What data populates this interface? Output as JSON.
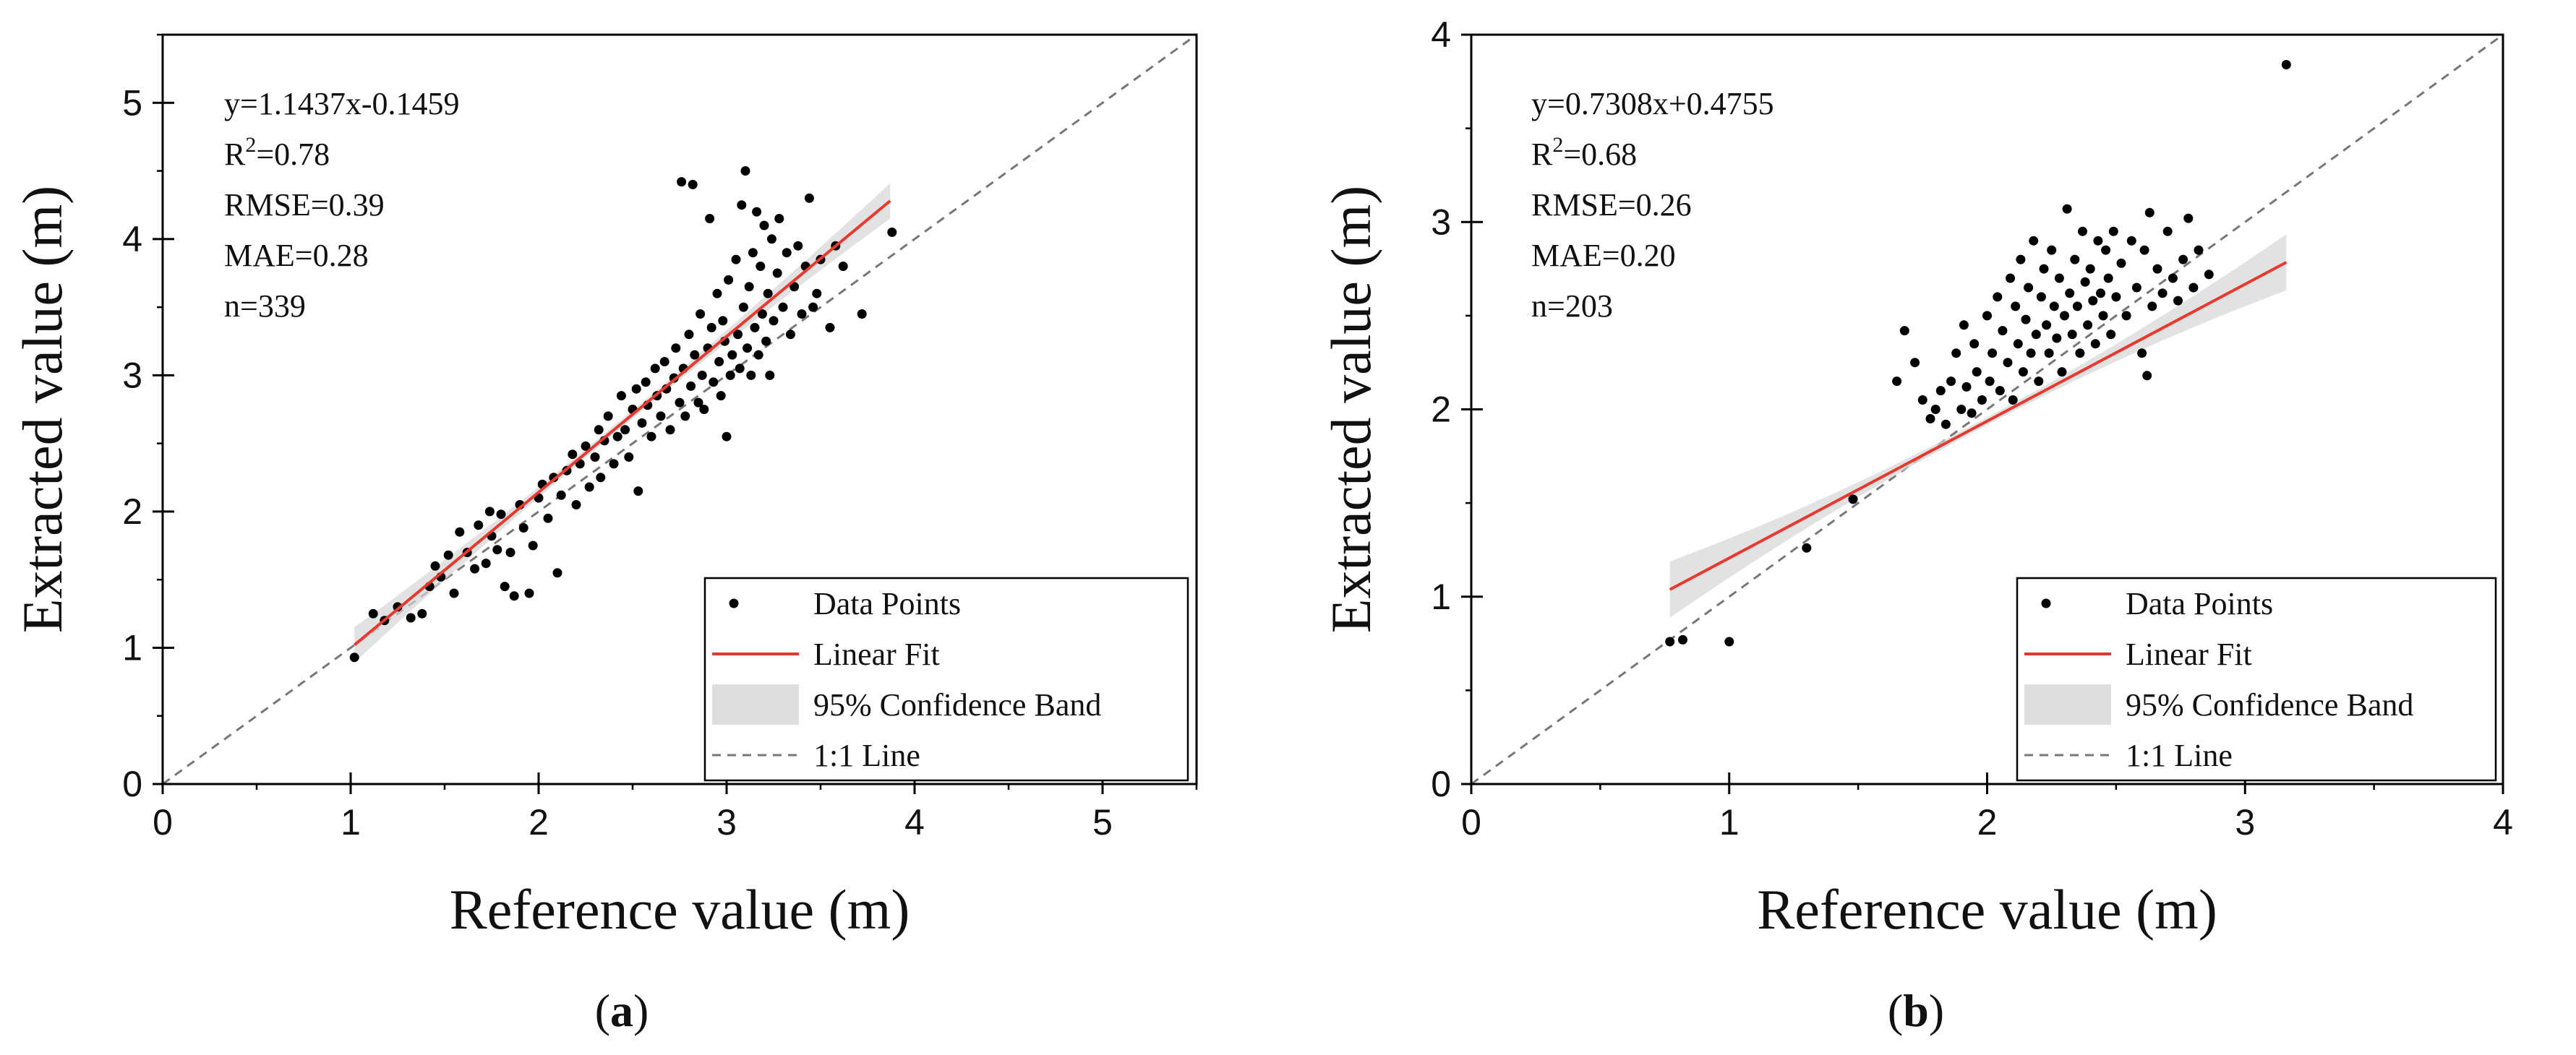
{
  "chart_data": [
    {
      "type": "scatter",
      "panel_label": "a",
      "xlabel": "Reference value (m)",
      "ylabel": "Extracted value (m)",
      "xlim": [
        0,
        5.5
      ],
      "ylim": [
        0,
        5.5
      ],
      "xticks": [
        0,
        1,
        2,
        3,
        4,
        5
      ],
      "yticks": [
        0,
        1,
        2,
        3,
        4,
        5
      ],
      "stats": [
        {
          "prefix": "y=1.1437x-0.1459",
          "sup": "",
          "suffix": ""
        },
        {
          "prefix": "R",
          "sup": "2",
          "suffix": "=0.78"
        },
        {
          "prefix": "RMSE=0.39",
          "sup": "",
          "suffix": ""
        },
        {
          "prefix": "MAE=0.28",
          "sup": "",
          "suffix": ""
        },
        {
          "prefix": "n=339",
          "sup": "",
          "suffix": ""
        }
      ],
      "fit": {
        "slope": 1.1437,
        "intercept": -0.1459,
        "x_range": [
          1.02,
          3.87
        ]
      },
      "band_halfwidth": {
        "min": 0.03,
        "max": 0.13
      },
      "legend": [
        "Data Points",
        "Linear Fit",
        "95% Confidence Band",
        "1:1 Line"
      ],
      "legend_position": "bottom-right",
      "points": [
        [
          1.02,
          0.93
        ],
        [
          1.12,
          1.25
        ],
        [
          1.18,
          1.2
        ],
        [
          1.25,
          1.3
        ],
        [
          1.32,
          1.22
        ],
        [
          1.38,
          1.25
        ],
        [
          1.42,
          1.45
        ],
        [
          1.45,
          1.6
        ],
        [
          1.48,
          1.52
        ],
        [
          1.52,
          1.68
        ],
        [
          1.55,
          1.4
        ],
        [
          1.58,
          1.85
        ],
        [
          1.62,
          1.7
        ],
        [
          1.66,
          1.58
        ],
        [
          1.68,
          1.9
        ],
        [
          1.72,
          1.62
        ],
        [
          1.74,
          2.0
        ],
        [
          1.75,
          1.82
        ],
        [
          1.78,
          1.72
        ],
        [
          1.8,
          1.98
        ],
        [
          1.82,
          1.45
        ],
        [
          1.85,
          1.7
        ],
        [
          1.87,
          1.38
        ],
        [
          1.9,
          2.05
        ],
        [
          1.92,
          1.88
        ],
        [
          1.95,
          1.4
        ],
        [
          1.97,
          1.75
        ],
        [
          2.0,
          2.1
        ],
        [
          2.02,
          2.2
        ],
        [
          2.05,
          1.95
        ],
        [
          2.08,
          2.25
        ],
        [
          2.1,
          1.55
        ],
        [
          2.12,
          2.12
        ],
        [
          2.15,
          2.3
        ],
        [
          2.18,
          2.42
        ],
        [
          2.2,
          2.05
        ],
        [
          2.22,
          2.35
        ],
        [
          2.25,
          2.48
        ],
        [
          2.27,
          2.18
        ],
        [
          2.3,
          2.4
        ],
        [
          2.32,
          2.6
        ],
        [
          2.33,
          2.25
        ],
        [
          2.35,
          2.52
        ],
        [
          2.37,
          2.7
        ],
        [
          2.4,
          2.35
        ],
        [
          2.42,
          2.55
        ],
        [
          2.44,
          2.85
        ],
        [
          2.46,
          2.6
        ],
        [
          2.48,
          2.4
        ],
        [
          2.5,
          2.75
        ],
        [
          2.52,
          2.9
        ],
        [
          2.53,
          2.15
        ],
        [
          2.55,
          2.65
        ],
        [
          2.57,
          2.95
        ],
        [
          2.58,
          2.78
        ],
        [
          2.6,
          2.55
        ],
        [
          2.62,
          3.05
        ],
        [
          2.63,
          2.85
        ],
        [
          2.65,
          2.7
        ],
        [
          2.67,
          3.1
        ],
        [
          2.68,
          2.9
        ],
        [
          2.7,
          2.6
        ],
        [
          2.72,
          2.98
        ],
        [
          2.73,
          3.2
        ],
        [
          2.75,
          2.8
        ],
        [
          2.76,
          4.42
        ],
        [
          2.77,
          3.05
        ],
        [
          2.78,
          2.7
        ],
        [
          2.8,
          3.3
        ],
        [
          2.81,
          2.92
        ],
        [
          2.82,
          4.4
        ],
        [
          2.83,
          3.15
        ],
        [
          2.85,
          2.8
        ],
        [
          2.86,
          3.45
        ],
        [
          2.87,
          3.0
        ],
        [
          2.88,
          2.75
        ],
        [
          2.9,
          3.2
        ],
        [
          2.91,
          4.15
        ],
        [
          2.92,
          3.35
        ],
        [
          2.93,
          2.95
        ],
        [
          2.95,
          3.6
        ],
        [
          2.96,
          3.1
        ],
        [
          2.97,
          2.85
        ],
        [
          2.98,
          3.4
        ],
        [
          2.99,
          3.25
        ],
        [
          3.0,
          2.55
        ],
        [
          3.01,
          3.7
        ],
        [
          3.02,
          3.0
        ],
        [
          3.03,
          3.15
        ],
        [
          3.05,
          3.85
        ],
        [
          3.06,
          3.3
        ],
        [
          3.07,
          3.05
        ],
        [
          3.08,
          4.25
        ],
        [
          3.09,
          3.5
        ],
        [
          3.1,
          4.5
        ],
        [
          3.11,
          3.2
        ],
        [
          3.12,
          3.65
        ],
        [
          3.13,
          3.0
        ],
        [
          3.14,
          3.9
        ],
        [
          3.15,
          3.35
        ],
        [
          3.16,
          4.2
        ],
        [
          3.17,
          3.15
        ],
        [
          3.18,
          3.8
        ],
        [
          3.19,
          3.45
        ],
        [
          3.2,
          4.1
        ],
        [
          3.21,
          3.25
        ],
        [
          3.22,
          3.6
        ],
        [
          3.23,
          3.0
        ],
        [
          3.24,
          4.0
        ],
        [
          3.25,
          3.4
        ],
        [
          3.27,
          3.75
        ],
        [
          3.28,
          4.15
        ],
        [
          3.3,
          3.5
        ],
        [
          3.32,
          3.9
        ],
        [
          3.34,
          3.3
        ],
        [
          3.36,
          3.65
        ],
        [
          3.38,
          3.95
        ],
        [
          3.4,
          3.45
        ],
        [
          3.42,
          3.8
        ],
        [
          3.44,
          4.3
        ],
        [
          3.46,
          3.5
        ],
        [
          3.48,
          3.6
        ],
        [
          3.5,
          3.85
        ],
        [
          3.55,
          3.35
        ],
        [
          3.58,
          3.95
        ],
        [
          3.62,
          3.8
        ],
        [
          3.72,
          3.45
        ],
        [
          3.88,
          4.05
        ]
      ]
    },
    {
      "type": "scatter",
      "panel_label": "b",
      "xlabel": "Reference value (m)",
      "ylabel": "Extracted value (m)",
      "xlim": [
        0,
        4
      ],
      "ylim": [
        0,
        4
      ],
      "xticks": [
        0,
        1,
        2,
        3,
        4
      ],
      "yticks": [
        0,
        1,
        2,
        3,
        4
      ],
      "stats": [
        {
          "prefix": "y=0.7308x+0.4755",
          "sup": "",
          "suffix": ""
        },
        {
          "prefix": "R",
          "sup": "2",
          "suffix": "=0.68"
        },
        {
          "prefix": "RMSE=0.26",
          "sup": "",
          "suffix": ""
        },
        {
          "prefix": "MAE=0.20",
          "sup": "",
          "suffix": ""
        },
        {
          "prefix": "n=203",
          "sup": "",
          "suffix": ""
        }
      ],
      "fit": {
        "slope": 0.7308,
        "intercept": 0.4755,
        "x_range": [
          0.77,
          3.16
        ]
      },
      "band_halfwidth": {
        "min": 0.02,
        "max": 0.15
      },
      "legend": [
        "Data Points",
        "Linear Fit",
        "95% Confidence Band",
        "1:1 Line"
      ],
      "legend_position": "bottom-right",
      "points": [
        [
          0.77,
          0.76
        ],
        [
          0.82,
          0.77
        ],
        [
          1.0,
          0.76
        ],
        [
          1.3,
          1.26
        ],
        [
          1.48,
          1.52
        ],
        [
          1.65,
          2.15
        ],
        [
          1.68,
          2.42
        ],
        [
          1.72,
          2.25
        ],
        [
          1.75,
          2.05
        ],
        [
          1.78,
          1.95
        ],
        [
          1.8,
          2.0
        ],
        [
          1.82,
          2.1
        ],
        [
          1.84,
          1.92
        ],
        [
          1.86,
          2.15
        ],
        [
          1.88,
          2.3
        ],
        [
          1.9,
          2.0
        ],
        [
          1.91,
          2.45
        ],
        [
          1.92,
          2.12
        ],
        [
          1.94,
          1.98
        ],
        [
          1.95,
          2.35
        ],
        [
          1.96,
          2.2
        ],
        [
          1.98,
          2.05
        ],
        [
          2.0,
          2.5
        ],
        [
          2.01,
          2.15
        ],
        [
          2.02,
          2.3
        ],
        [
          2.04,
          2.6
        ],
        [
          2.05,
          2.1
        ],
        [
          2.06,
          2.42
        ],
        [
          2.08,
          2.25
        ],
        [
          2.09,
          2.7
        ],
        [
          2.1,
          2.05
        ],
        [
          2.11,
          2.55
        ],
        [
          2.12,
          2.35
        ],
        [
          2.13,
          2.8
        ],
        [
          2.14,
          2.2
        ],
        [
          2.15,
          2.48
        ],
        [
          2.16,
          2.65
        ],
        [
          2.17,
          2.3
        ],
        [
          2.18,
          2.9
        ],
        [
          2.19,
          2.4
        ],
        [
          2.2,
          2.15
        ],
        [
          2.21,
          2.6
        ],
        [
          2.22,
          2.75
        ],
        [
          2.23,
          2.45
        ],
        [
          2.24,
          2.3
        ],
        [
          2.25,
          2.85
        ],
        [
          2.26,
          2.55
        ],
        [
          2.27,
          2.38
        ],
        [
          2.28,
          2.7
        ],
        [
          2.29,
          2.2
        ],
        [
          2.3,
          2.5
        ],
        [
          2.31,
          3.07
        ],
        [
          2.32,
          2.62
        ],
        [
          2.33,
          2.4
        ],
        [
          2.34,
          2.8
        ],
        [
          2.35,
          2.55
        ],
        [
          2.36,
          2.3
        ],
        [
          2.37,
          2.95
        ],
        [
          2.38,
          2.68
        ],
        [
          2.39,
          2.45
        ],
        [
          2.4,
          2.75
        ],
        [
          2.41,
          2.58
        ],
        [
          2.42,
          2.35
        ],
        [
          2.43,
          2.9
        ],
        [
          2.44,
          2.62
        ],
        [
          2.45,
          2.5
        ],
        [
          2.46,
          2.85
        ],
        [
          2.47,
          2.7
        ],
        [
          2.48,
          2.4
        ],
        [
          2.49,
          2.95
        ],
        [
          2.5,
          2.6
        ],
        [
          2.52,
          2.78
        ],
        [
          2.54,
          2.5
        ],
        [
          2.56,
          2.9
        ],
        [
          2.58,
          2.65
        ],
        [
          2.6,
          2.3
        ],
        [
          2.61,
          2.85
        ],
        [
          2.62,
          2.18
        ],
        [
          2.63,
          3.05
        ],
        [
          2.64,
          2.55
        ],
        [
          2.66,
          2.75
        ],
        [
          2.68,
          2.62
        ],
        [
          2.7,
          2.95
        ],
        [
          2.72,
          2.7
        ],
        [
          2.74,
          2.58
        ],
        [
          2.76,
          2.8
        ],
        [
          2.78,
          3.02
        ],
        [
          2.8,
          2.65
        ],
        [
          2.82,
          2.85
        ],
        [
          2.86,
          2.72
        ],
        [
          3.16,
          3.84
        ]
      ]
    }
  ]
}
